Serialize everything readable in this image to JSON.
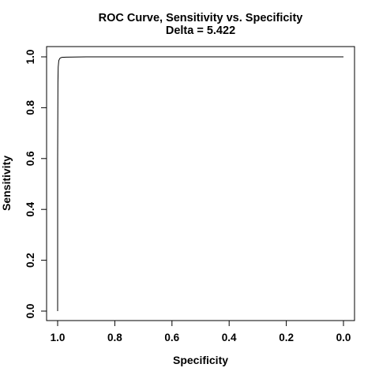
{
  "chart_data": {
    "type": "line",
    "title": "ROC Curve, Sensitivity vs. Specificity",
    "subtitle": "Delta = 5.422",
    "xlabel": "Specificity",
    "ylabel": "Sensitivity",
    "xlim": [
      1.0,
      0.0
    ],
    "ylim": [
      0.0,
      1.0
    ],
    "x_reversed": true,
    "x_ticks": [
      1.0,
      0.8,
      0.6,
      0.4,
      0.2,
      0.0
    ],
    "x_tick_labels": [
      "1.0",
      "0.8",
      "0.6",
      "0.4",
      "0.2",
      "0.0"
    ],
    "y_ticks": [
      0.0,
      0.2,
      0.4,
      0.6,
      0.8,
      1.0
    ],
    "y_tick_labels": [
      "0.0",
      "0.2",
      "0.4",
      "0.6",
      "0.8",
      "1.0"
    ],
    "grid": false,
    "series": [
      {
        "x": [
          1.0,
          1.0,
          0.999,
          0.998,
          0.996,
          0.993,
          0.99,
          0.985,
          0.97,
          0.9,
          0.7,
          0.5,
          0.3,
          0.0
        ],
        "y": [
          0.0,
          0.6,
          0.9,
          0.96,
          0.985,
          0.993,
          0.996,
          0.998,
          0.999,
          1.0,
          1.0,
          1.0,
          1.0,
          1.0
        ],
        "color": "#000000"
      }
    ]
  }
}
